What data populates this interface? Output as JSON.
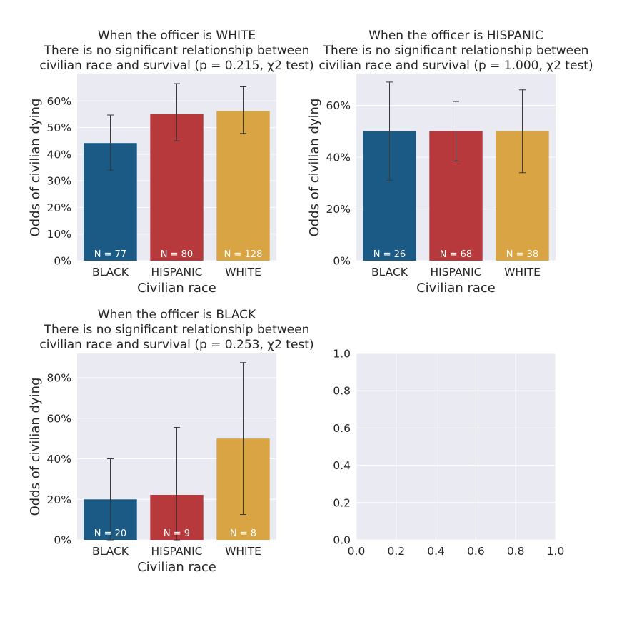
{
  "chart_data": [
    {
      "type": "bar",
      "title": [
        "When the officer is WHITE",
        "There is no significant relationship between",
        "civilian race and survival (p = 0.215, χ2 test)"
      ],
      "xlabel": "Civilian race",
      "ylabel": "Odds of civilian dying",
      "categories": [
        "BLACK",
        "HISPANIC",
        "WHITE"
      ],
      "values": [
        0.442,
        0.55,
        0.562
      ],
      "error_low": [
        0.34,
        0.45,
        0.478
      ],
      "error_high": [
        0.547,
        0.665,
        0.653
      ],
      "counts": [
        "N = 77",
        "N = 80",
        "N = 128"
      ],
      "ylim": [
        0,
        0.7
      ],
      "yticks": [
        0,
        0.1,
        0.2,
        0.3,
        0.4,
        0.5,
        0.6
      ],
      "ytick_labels": [
        "0%",
        "10%",
        "20%",
        "30%",
        "40%",
        "50%",
        "60%"
      ],
      "colors": [
        "#1b5a85",
        "#b8393b",
        "#d9a444"
      ],
      "grid": true
    },
    {
      "type": "bar",
      "title": [
        "When the officer is HISPANIC",
        "There is no significant relationship between",
        "civilian race and survival (p = 1.000, χ2 test)"
      ],
      "xlabel": "Civilian race",
      "ylabel": "Odds of civilian dying",
      "categories": [
        "BLACK",
        "HISPANIC",
        "WHITE"
      ],
      "values": [
        0.5,
        0.5,
        0.5
      ],
      "error_low": [
        0.31,
        0.385,
        0.34
      ],
      "error_high": [
        0.69,
        0.615,
        0.66
      ],
      "counts": [
        "N = 26",
        "N = 68",
        "N = 38"
      ],
      "ylim": [
        0,
        0.72
      ],
      "yticks": [
        0,
        0.2,
        0.4,
        0.6
      ],
      "ytick_labels": [
        "0%",
        "20%",
        "40%",
        "60%"
      ],
      "colors": [
        "#1b5a85",
        "#b8393b",
        "#d9a444"
      ],
      "grid": true
    },
    {
      "type": "bar",
      "title": [
        "When the officer is BLACK",
        "There is no significant relationship between",
        "civilian race and survival (p = 0.253, χ2 test)"
      ],
      "xlabel": "Civilian race",
      "ylabel": "Odds of civilian dying",
      "categories": [
        "BLACK",
        "HISPANIC",
        "WHITE"
      ],
      "values": [
        0.2,
        0.222,
        0.5
      ],
      "error_low": [
        0.0,
        0.0,
        0.125
      ],
      "error_high": [
        0.4,
        0.555,
        0.875
      ],
      "counts": [
        "N = 20",
        "N = 9",
        "N = 8"
      ],
      "ylim": [
        0,
        0.92
      ],
      "yticks": [
        0,
        0.2,
        0.4,
        0.6,
        0.8
      ],
      "ytick_labels": [
        "0%",
        "20%",
        "40%",
        "60%",
        "80%"
      ],
      "colors": [
        "#1b5a85",
        "#b8393b",
        "#d9a444"
      ],
      "grid": true
    },
    {
      "type": "bar",
      "title": [],
      "xlabel": "",
      "ylabel": "",
      "categories": [],
      "values": [],
      "xlim": [
        0,
        1
      ],
      "ylim": [
        0,
        1
      ],
      "xticks": [
        0,
        0.2,
        0.4,
        0.6,
        0.8,
        1.0
      ],
      "xtick_labels": [
        "0.0",
        "0.2",
        "0.4",
        "0.6",
        "0.8",
        "1.0"
      ],
      "yticks": [
        0,
        0.2,
        0.4,
        0.6,
        0.8,
        1.0
      ],
      "ytick_labels": [
        "0.0",
        "0.2",
        "0.4",
        "0.6",
        "0.8",
        "1.0"
      ],
      "grid": true
    }
  ]
}
